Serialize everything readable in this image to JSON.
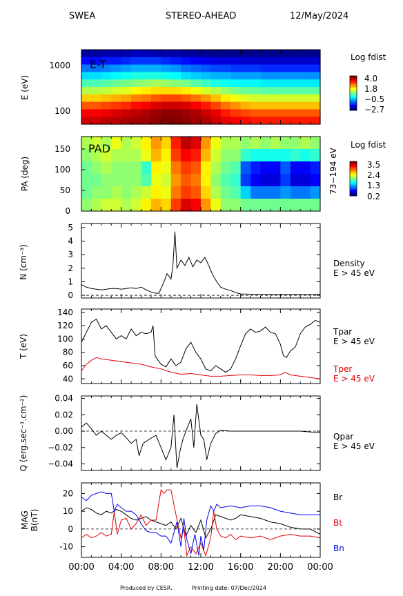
{
  "header": {
    "instrument": "SWEA",
    "spacecraft": "STEREO-AHEAD",
    "date": "12/May/2024"
  },
  "footer": {
    "produced": "Produced by CESR.",
    "printing": "Printing date: 07/Dec/2024"
  },
  "colors": {
    "black": "#000000",
    "tpar": "#000000",
    "tper": "#e00000",
    "br": "#000000",
    "bt": "#e00000",
    "bn": "#0000ee"
  },
  "time_axis": {
    "ticks": [
      "00:00",
      "04:00",
      "08:00",
      "12:00",
      "16:00",
      "20:00",
      "00:00"
    ],
    "range_hours": [
      0,
      24
    ]
  },
  "chart_data": [
    {
      "type": "heatmap",
      "panel_label": "E-T",
      "ylabel": "E (eV)",
      "yscale": "log",
      "yticks": [
        "1000",
        "100"
      ],
      "y_range_ev": [
        50,
        2000
      ],
      "colorbar": {
        "title": "Log fdist",
        "ticks": [
          "4.0",
          "1.8",
          "−0.5",
          "−2.7"
        ],
        "range": [
          -2.7,
          4.0
        ]
      },
      "rows_top_to_bottom": [
        [
          -2.5,
          -2.5,
          -2.4,
          -2.4,
          -2.4,
          -2.3,
          -2.3,
          -2.4,
          -2.4,
          -2.4,
          -2.5,
          -2.5,
          -2.6,
          -2.6,
          -2.6,
          -2.6,
          -2.6,
          -2.6,
          -2.6,
          -2.6,
          -2.6,
          -2.6,
          -2.6,
          -2.6
        ],
        [
          -1.8,
          -1.8,
          -1.7,
          -1.7,
          -1.6,
          -1.5,
          -1.5,
          -1.5,
          -1.6,
          -1.7,
          -1.8,
          -1.9,
          -2.0,
          -2.1,
          -2.1,
          -2.1,
          -2.2,
          -2.2,
          -2.2,
          -2.2,
          -2.2,
          -2.2,
          -2.2,
          -2.2
        ],
        [
          -1.1,
          -1.1,
          -1.0,
          -0.9,
          -0.8,
          -0.7,
          -0.7,
          -0.7,
          -0.8,
          -0.9,
          -1.1,
          -1.2,
          -1.3,
          -1.4,
          -1.4,
          -1.5,
          -1.5,
          -1.5,
          -1.6,
          -1.6,
          -1.6,
          -1.6,
          -1.6,
          -1.6
        ],
        [
          -0.4,
          -0.4,
          -0.3,
          -0.2,
          -0.1,
          0.0,
          0.0,
          0.0,
          -0.1,
          -0.2,
          -0.4,
          -0.5,
          -0.6,
          -0.7,
          -0.7,
          -0.8,
          -0.8,
          -0.8,
          -0.9,
          -0.9,
          -0.9,
          -0.9,
          -0.9,
          -0.9
        ],
        [
          0.3,
          0.3,
          0.4,
          0.5,
          0.6,
          0.7,
          0.8,
          0.9,
          0.8,
          0.7,
          0.6,
          0.4,
          0.2,
          0.0,
          -0.1,
          -0.2,
          -0.2,
          -0.2,
          -0.3,
          -0.3,
          -0.3,
          -0.3,
          -0.3,
          -0.3
        ],
        [
          1.0,
          1.0,
          1.1,
          1.2,
          1.3,
          1.5,
          1.6,
          1.7,
          1.7,
          1.7,
          1.6,
          1.4,
          1.2,
          1.0,
          0.8,
          0.6,
          0.5,
          0.5,
          0.4,
          0.4,
          0.4,
          0.4,
          0.4,
          0.4
        ],
        [
          1.8,
          1.8,
          1.9,
          2.0,
          2.1,
          2.3,
          2.4,
          2.6,
          2.7,
          2.7,
          2.6,
          2.4,
          2.2,
          1.9,
          1.6,
          1.4,
          1.3,
          1.2,
          1.2,
          1.2,
          1.2,
          1.2,
          1.2,
          1.2
        ],
        [
          2.6,
          2.6,
          2.7,
          2.8,
          2.9,
          3.1,
          3.2,
          3.4,
          3.5,
          3.5,
          3.4,
          3.2,
          3.0,
          2.7,
          2.4,
          2.2,
          2.0,
          1.9,
          1.9,
          1.9,
          1.9,
          1.9,
          1.9,
          1.9
        ],
        [
          3.2,
          3.2,
          3.3,
          3.4,
          3.5,
          3.6,
          3.7,
          3.8,
          3.9,
          3.9,
          3.8,
          3.7,
          3.5,
          3.3,
          3.0,
          2.8,
          2.7,
          2.6,
          2.6,
          2.6,
          2.6,
          2.6,
          2.6,
          2.6
        ],
        [
          3.5,
          3.5,
          3.6,
          3.6,
          3.7,
          3.8,
          3.8,
          3.9,
          4.0,
          4.0,
          3.9,
          3.8,
          3.7,
          3.5,
          3.3,
          3.2,
          3.1,
          3.0,
          3.0,
          3.0,
          3.0,
          3.0,
          3.0,
          3.0
        ]
      ]
    },
    {
      "type": "heatmap",
      "panel_label": "PAD",
      "ylabel": "PA (deg)",
      "energy_range": "73−194 eV",
      "yticks": [
        0,
        50,
        100,
        150
      ],
      "y_range": [
        0,
        180
      ],
      "colorbar": {
        "title": "Log fdist",
        "ticks": [
          "3.5",
          "2.4",
          "1.3",
          "0.2"
        ],
        "range": [
          0.2,
          3.5
        ]
      },
      "rows_top_to_bottom": [
        [
          2.0,
          2.1,
          2.0,
          2.2,
          2.0,
          2.1,
          2.3,
          2.6,
          2.4,
          3.0,
          3.3,
          3.2,
          2.6,
          2.2,
          2.0,
          2.0,
          1.9,
          2.0,
          1.9,
          2.0,
          1.9,
          1.9,
          2.0,
          1.9
        ],
        [
          1.9,
          2.0,
          2.1,
          2.0,
          2.0,
          2.0,
          2.2,
          2.5,
          2.3,
          2.9,
          3.1,
          3.0,
          2.5,
          2.1,
          1.9,
          1.9,
          1.6,
          1.5,
          1.5,
          1.5,
          1.5,
          1.6,
          1.5,
          1.6
        ],
        [
          1.8,
          1.9,
          2.0,
          1.9,
          1.9,
          1.9,
          1.6,
          2.3,
          2.2,
          2.7,
          2.9,
          2.8,
          2.3,
          2.0,
          1.8,
          1.7,
          0.9,
          0.7,
          0.6,
          0.6,
          0.9,
          0.6,
          0.6,
          0.7
        ],
        [
          1.8,
          1.8,
          1.9,
          1.9,
          1.9,
          1.9,
          1.7,
          2.2,
          2.1,
          2.6,
          2.8,
          2.7,
          2.3,
          1.9,
          1.7,
          1.6,
          0.8,
          0.6,
          0.5,
          0.5,
          0.8,
          0.5,
          0.5,
          0.6
        ],
        [
          1.8,
          1.9,
          1.9,
          2.0,
          1.9,
          2.0,
          2.1,
          2.3,
          2.2,
          2.7,
          2.9,
          2.8,
          2.4,
          2.0,
          1.8,
          1.7,
          1.3,
          1.0,
          1.0,
          1.0,
          1.1,
          1.0,
          1.0,
          1.1
        ],
        [
          1.9,
          2.0,
          2.1,
          2.1,
          2.0,
          2.1,
          2.3,
          2.5,
          2.4,
          2.9,
          3.2,
          3.1,
          2.6,
          2.2,
          1.9,
          1.9,
          1.8,
          1.8,
          1.8,
          1.8,
          1.8,
          1.8,
          1.8,
          1.8
        ]
      ]
    },
    {
      "type": "line",
      "ylabel": "N (cm⁻³)",
      "label": [
        "Density",
        "E > 45 eV"
      ],
      "yticks": [
        0,
        1,
        2,
        3,
        4,
        5
      ],
      "ylim": [
        -0.2,
        5.3
      ],
      "reference_line": 0,
      "series": [
        {
          "color": "#000000",
          "x": [
            0,
            0.5,
            1,
            1.5,
            2,
            2.5,
            3,
            3.5,
            4,
            4.5,
            5,
            5.5,
            6,
            6.5,
            7,
            7.5,
            7.8,
            8.0,
            8.3,
            8.6,
            9.0,
            9.2,
            9.4,
            9.6,
            10.0,
            10.4,
            10.8,
            11.2,
            11.6,
            12.0,
            12.4,
            12.8,
            13.2,
            13.6,
            14.0,
            14.5,
            15,
            15.5,
            16,
            17,
            18,
            19,
            20,
            21,
            22,
            23,
            24
          ],
          "y": [
            0.8,
            0.6,
            0.5,
            0.45,
            0.4,
            0.45,
            0.5,
            0.5,
            0.45,
            0.5,
            0.55,
            0.5,
            0.6,
            0.4,
            0.25,
            0.15,
            0.15,
            0.5,
            1.0,
            1.6,
            1.2,
            2.2,
            4.7,
            2.0,
            2.6,
            2.2,
            2.8,
            2.1,
            2.6,
            2.4,
            2.8,
            2.2,
            1.5,
            1.0,
            0.6,
            0.45,
            0.35,
            0.2,
            0.1,
            0.08,
            0.07,
            0.06,
            0.06,
            0.06,
            0.06,
            0.06,
            0.06
          ]
        }
      ]
    },
    {
      "type": "line",
      "ylabel": "T (eV)",
      "yticks": [
        40,
        60,
        80,
        100,
        120,
        140
      ],
      "ylim": [
        33,
        145
      ],
      "series": [
        {
          "name": [
            "Tpar",
            "E > 45 eV"
          ],
          "color": "#000000",
          "x": [
            0,
            0.5,
            1,
            1.5,
            2,
            2.5,
            3,
            3.5,
            4,
            4.5,
            5,
            5.5,
            6,
            6.5,
            7,
            7.2,
            7.4,
            7.6,
            8,
            8.5,
            9,
            9.5,
            10,
            10.5,
            11,
            11.5,
            12,
            12.5,
            13,
            13.5,
            14,
            14.5,
            15,
            15.5,
            16,
            16.5,
            17,
            17.5,
            18,
            18.5,
            19,
            19.5,
            20,
            20.3,
            20.6,
            21,
            21.5,
            22,
            22.5,
            23,
            23.5,
            24
          ],
          "y": [
            95,
            110,
            125,
            130,
            115,
            120,
            110,
            100,
            105,
            100,
            115,
            105,
            110,
            108,
            110,
            120,
            75,
            70,
            62,
            58,
            70,
            60,
            65,
            85,
            95,
            80,
            70,
            55,
            52,
            60,
            55,
            50,
            55,
            70,
            90,
            108,
            115,
            110,
            112,
            118,
            110,
            108,
            92,
            75,
            72,
            82,
            88,
            108,
            118,
            122,
            128,
            125
          ]
        },
        {
          "name": [
            "Tper",
            "E > 45 eV"
          ],
          "color": "#e00000",
          "x": [
            0,
            0.5,
            1,
            1.5,
            2,
            3,
            4,
            5,
            6,
            7,
            8,
            9,
            10,
            11,
            12,
            13,
            14,
            15,
            16,
            17,
            18,
            19,
            20,
            20.5,
            21,
            22,
            23,
            24
          ],
          "y": [
            52,
            62,
            68,
            72,
            70,
            68,
            66,
            64,
            62,
            58,
            55,
            50,
            47,
            48,
            46,
            44,
            44,
            45,
            46,
            46,
            45,
            45,
            46,
            50,
            46,
            44,
            42,
            40
          ]
        }
      ]
    },
    {
      "type": "line",
      "ylabel": "Q (erg.sec⁻¹.cm⁻²)",
      "label": [
        "Qpar",
        "E > 45 eV"
      ],
      "yticks": [
        "0.04",
        "0.02",
        "0.00",
        "−0.02",
        "−0.04"
      ],
      "ylim": [
        -0.048,
        0.043
      ],
      "reference_line": 0,
      "series": [
        {
          "color": "#000000",
          "x": [
            0,
            0.5,
            1,
            1.5,
            2,
            2.5,
            3,
            3.5,
            4,
            4.5,
            5,
            5.5,
            5.8,
            6.2,
            6.8,
            7.5,
            8,
            8.5,
            9,
            9.3,
            9.6,
            9.9,
            10.2,
            10.6,
            11,
            11.3,
            11.6,
            12,
            12.3,
            12.6,
            13,
            13.5,
            14,
            15,
            16,
            18,
            20,
            22,
            24
          ],
          "y": [
            0.005,
            0.01,
            0.003,
            -0.005,
            0.0,
            -0.005,
            -0.01,
            -0.005,
            -0.002,
            -0.008,
            -0.015,
            -0.01,
            -0.03,
            -0.015,
            -0.01,
            -0.005,
            -0.02,
            -0.035,
            -0.02,
            0.02,
            -0.045,
            -0.025,
            -0.01,
            0.003,
            0.015,
            -0.02,
            0.033,
            -0.005,
            -0.01,
            -0.035,
            -0.015,
            -0.003,
            0.001,
            0.0,
            0.0,
            0.0,
            0.0,
            0.0,
            -0.002
          ]
        }
      ]
    },
    {
      "type": "line",
      "ylabel": [
        "MAG",
        "B(nT)"
      ],
      "yticks": [
        20,
        10,
        0,
        -10
      ],
      "ylim": [
        -16,
        26
      ],
      "reference_line": 0,
      "series": [
        {
          "name": "Br",
          "color": "#000000",
          "x": [
            0,
            0.5,
            1,
            1.5,
            2,
            2.5,
            3,
            3.5,
            4,
            4.5,
            5,
            5.5,
            6,
            6.5,
            7,
            7.5,
            8,
            8.5,
            9,
            9.5,
            10,
            10.5,
            11,
            11.5,
            12,
            12.5,
            13,
            13.5,
            14,
            14.5,
            15,
            15.5,
            16,
            17,
            18,
            19,
            20,
            21,
            22,
            23,
            24
          ],
          "y": [
            10,
            12,
            11,
            9,
            8,
            10,
            9,
            11,
            10,
            8,
            6,
            5,
            6,
            7,
            5,
            4,
            3,
            2,
            4,
            0,
            6,
            -4,
            2,
            -2,
            5,
            -5,
            0,
            8,
            7,
            6,
            5,
            6,
            8,
            7,
            6,
            4,
            3,
            1,
            0,
            0,
            -3
          ]
        },
        {
          "name": "Bt",
          "color": "#e00000",
          "x": [
            0,
            0.5,
            1,
            1.5,
            2,
            2.5,
            3,
            3.3,
            3.6,
            4,
            4.5,
            5,
            5.5,
            6,
            6.5,
            7,
            7.5,
            8,
            8.3,
            8.6,
            9,
            9.5,
            10,
            10.3,
            10.6,
            11,
            11.5,
            12,
            12.5,
            13,
            13.3,
            13.6,
            14,
            14.5,
            15,
            15.5,
            16,
            17,
            18,
            19,
            20,
            21,
            22,
            23,
            24
          ],
          "y": [
            -5,
            -3,
            -5,
            -4,
            -2,
            -4,
            -3,
            10,
            -3,
            5,
            6,
            0,
            3,
            8,
            2,
            5,
            5,
            22,
            20,
            22,
            22,
            8,
            -5,
            0,
            -15,
            -10,
            -14,
            -8,
            -15,
            -5,
            10,
            0,
            -4,
            -5,
            -3,
            -6,
            -4,
            -5,
            -4,
            -6,
            -4,
            -3,
            -4,
            -4,
            -5
          ]
        },
        {
          "name": "Bn",
          "color": "#0000ee",
          "x": [
            0,
            0.5,
            1,
            1.5,
            2,
            2.5,
            3,
            3.3,
            3.6,
            4,
            4.5,
            5,
            5.5,
            6,
            6.5,
            7,
            7.5,
            8,
            8.5,
            9,
            9.3,
            9.6,
            10,
            10.3,
            10.6,
            11,
            11.4,
            11.8,
            12,
            12.3,
            12.6,
            13,
            13.3,
            13.6,
            14,
            15,
            16,
            17,
            18,
            19,
            20,
            21,
            22,
            23,
            24
          ],
          "y": [
            18,
            16,
            19,
            20,
            21,
            20,
            20,
            10,
            14,
            12,
            10,
            10,
            8,
            3,
            -1,
            -2,
            -2,
            -4,
            -4,
            -8,
            -2,
            4,
            -10,
            6,
            -6,
            -14,
            -3,
            -15,
            -4,
            -12,
            5,
            13,
            10,
            14,
            12,
            13,
            12,
            13,
            13,
            12,
            10,
            9,
            8,
            8,
            8
          ]
        }
      ]
    }
  ]
}
